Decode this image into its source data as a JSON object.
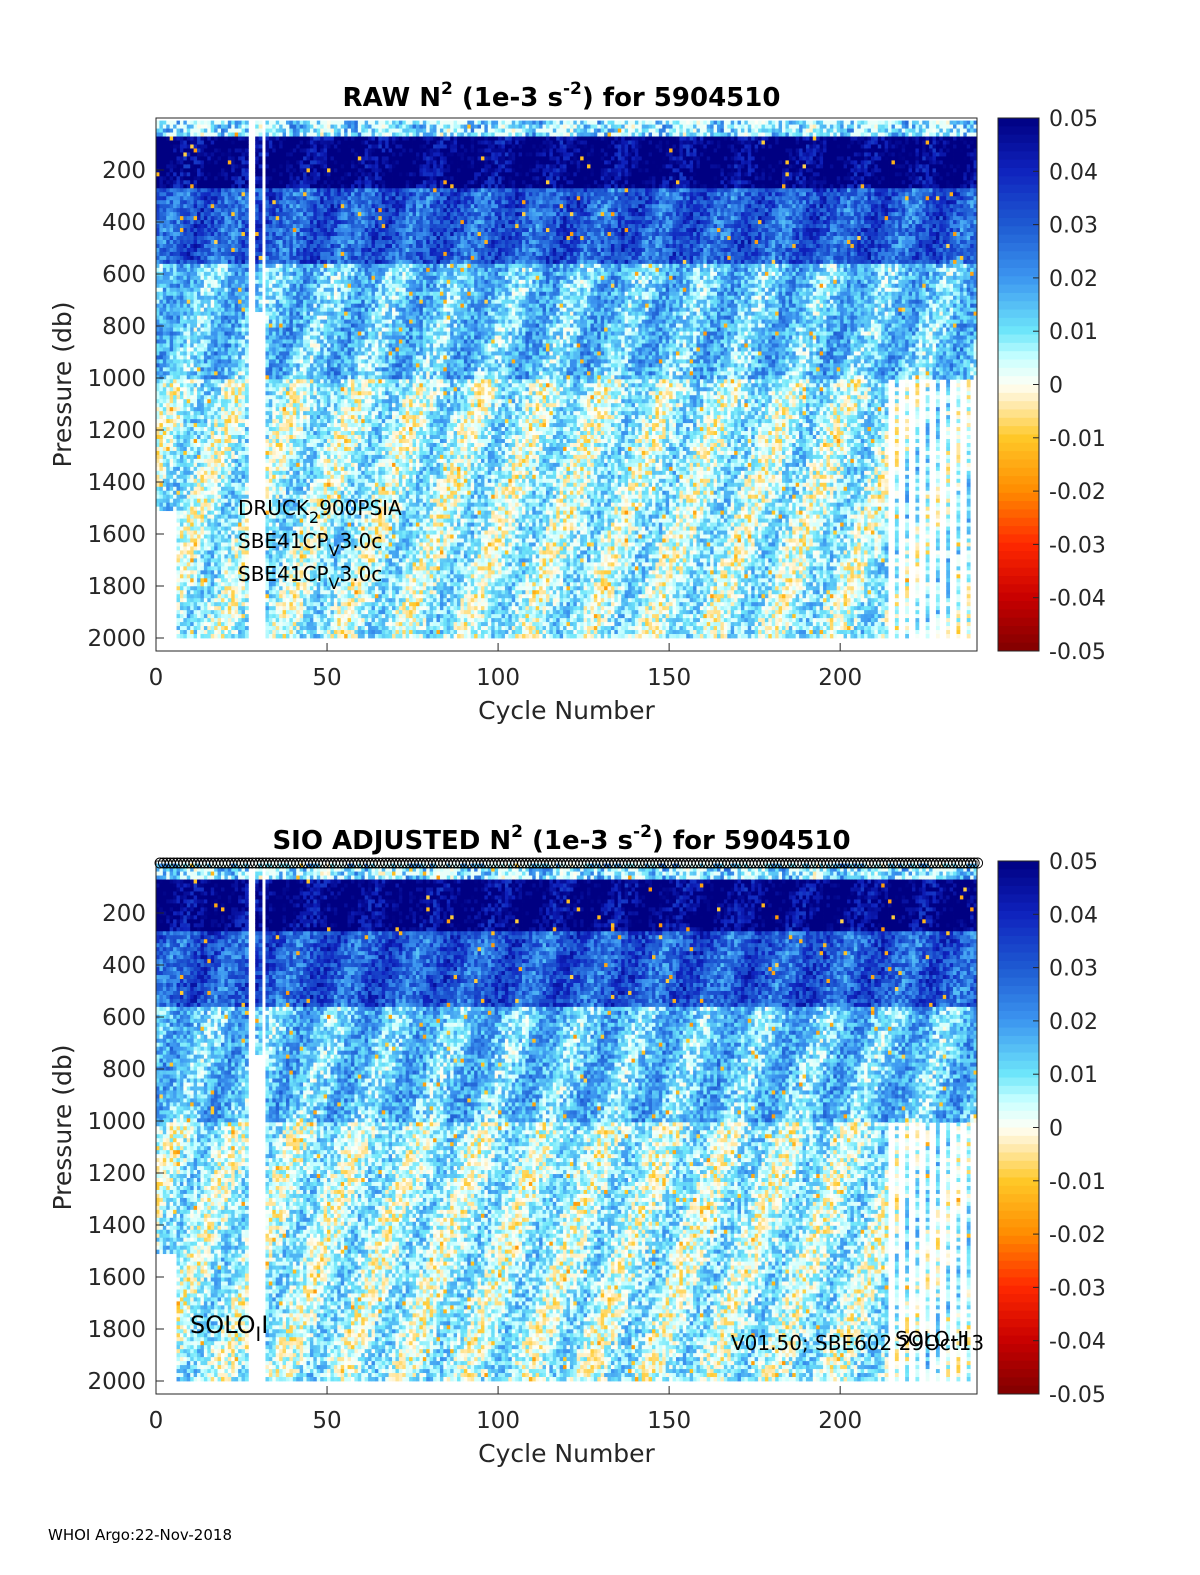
{
  "footer": "WHOI Argo:22-Nov-2018",
  "chart_data": [
    {
      "type": "heatmap",
      "title": {
        "prefix": "RAW N",
        "sup1": "2",
        "middle": " (1e-3 s",
        "sup2": "-2",
        "suffix": ") for 5904510"
      },
      "xlabel": "Cycle Number",
      "ylabel": "Pressure (db)",
      "xlim": [
        0,
        240
      ],
      "ylim": [
        2050,
        0
      ],
      "xticks": [
        0,
        50,
        100,
        150,
        200
      ],
      "yticks": [
        200,
        400,
        600,
        800,
        1000,
        1200,
        1400,
        1600,
        1800,
        2000
      ],
      "colorbar": {
        "ticks": [
          "0.05",
          "0.04",
          "0.03",
          "0.02",
          "0.01",
          "0",
          "-0.01",
          "-0.02",
          "-0.03",
          "-0.04",
          "-0.05"
        ],
        "colormap": "jet-like: dark red (-0.05) → red → orange → yellow → white (0) → cyan → blue → dark blue (0.05)"
      },
      "data_description": {
        "profile_top_db": 10,
        "profile_bottom_db": 2000,
        "max_cycle": 239,
        "layers": [
          {
            "from_db": 10,
            "to_db": 60,
            "dominant_value": 0.012
          },
          {
            "from_db": 60,
            "to_db": 260,
            "dominant_value": 0.05
          },
          {
            "from_db": 260,
            "to_db": 560,
            "dominant_value": 0.03
          },
          {
            "from_db": 560,
            "to_db": 1000,
            "dominant_value": 0.014
          },
          {
            "from_db": 1000,
            "to_db": 2000,
            "dominant_value": 0.006
          }
        ],
        "gaps_cycles": [
          27,
          28,
          31
        ],
        "sparse_after_cycle": 212
      },
      "annotations": [
        {
          "main": "DRUCK",
          "sub": "2",
          "rest": "900PSIA",
          "kind": "sub"
        },
        {
          "main": "SBE41CP",
          "sub": "V",
          "rest": "3.0c",
          "kind": "sub"
        },
        {
          "main": "SBE41CP",
          "sub": "V",
          "rest": "3.0c",
          "kind": "sub"
        }
      ]
    },
    {
      "type": "heatmap",
      "title": {
        "prefix": "SIO  ADJUSTED N",
        "sup1": "2",
        "middle": " (1e-3 s",
        "sup2": "-2",
        "suffix": ") for 5904510"
      },
      "xlabel": "Cycle Number",
      "ylabel": "Pressure (db)",
      "xlim": [
        0,
        240
      ],
      "ylim": [
        2050,
        0
      ],
      "xticks": [
        0,
        50,
        100,
        150,
        200
      ],
      "yticks": [
        200,
        400,
        600,
        800,
        1000,
        1200,
        1400,
        1600,
        1800,
        2000
      ],
      "colorbar": {
        "ticks": [
          "0.05",
          "0.04",
          "0.03",
          "0.02",
          "0.01",
          "0",
          "-0.01",
          "-0.02",
          "-0.03",
          "-0.04",
          "-0.05"
        ]
      },
      "annotations": [
        {
          "main": "SOLO",
          "sub": "I",
          "rest": "I",
          "kind": "sub"
        },
        {
          "main": "V01.50; SBE602 29Oct13",
          "sub": "",
          "rest": "",
          "kind": "plain"
        },
        {
          "main": "SOLO-II",
          "sub": "",
          "rest": "",
          "kind": "plain"
        }
      ]
    }
  ]
}
